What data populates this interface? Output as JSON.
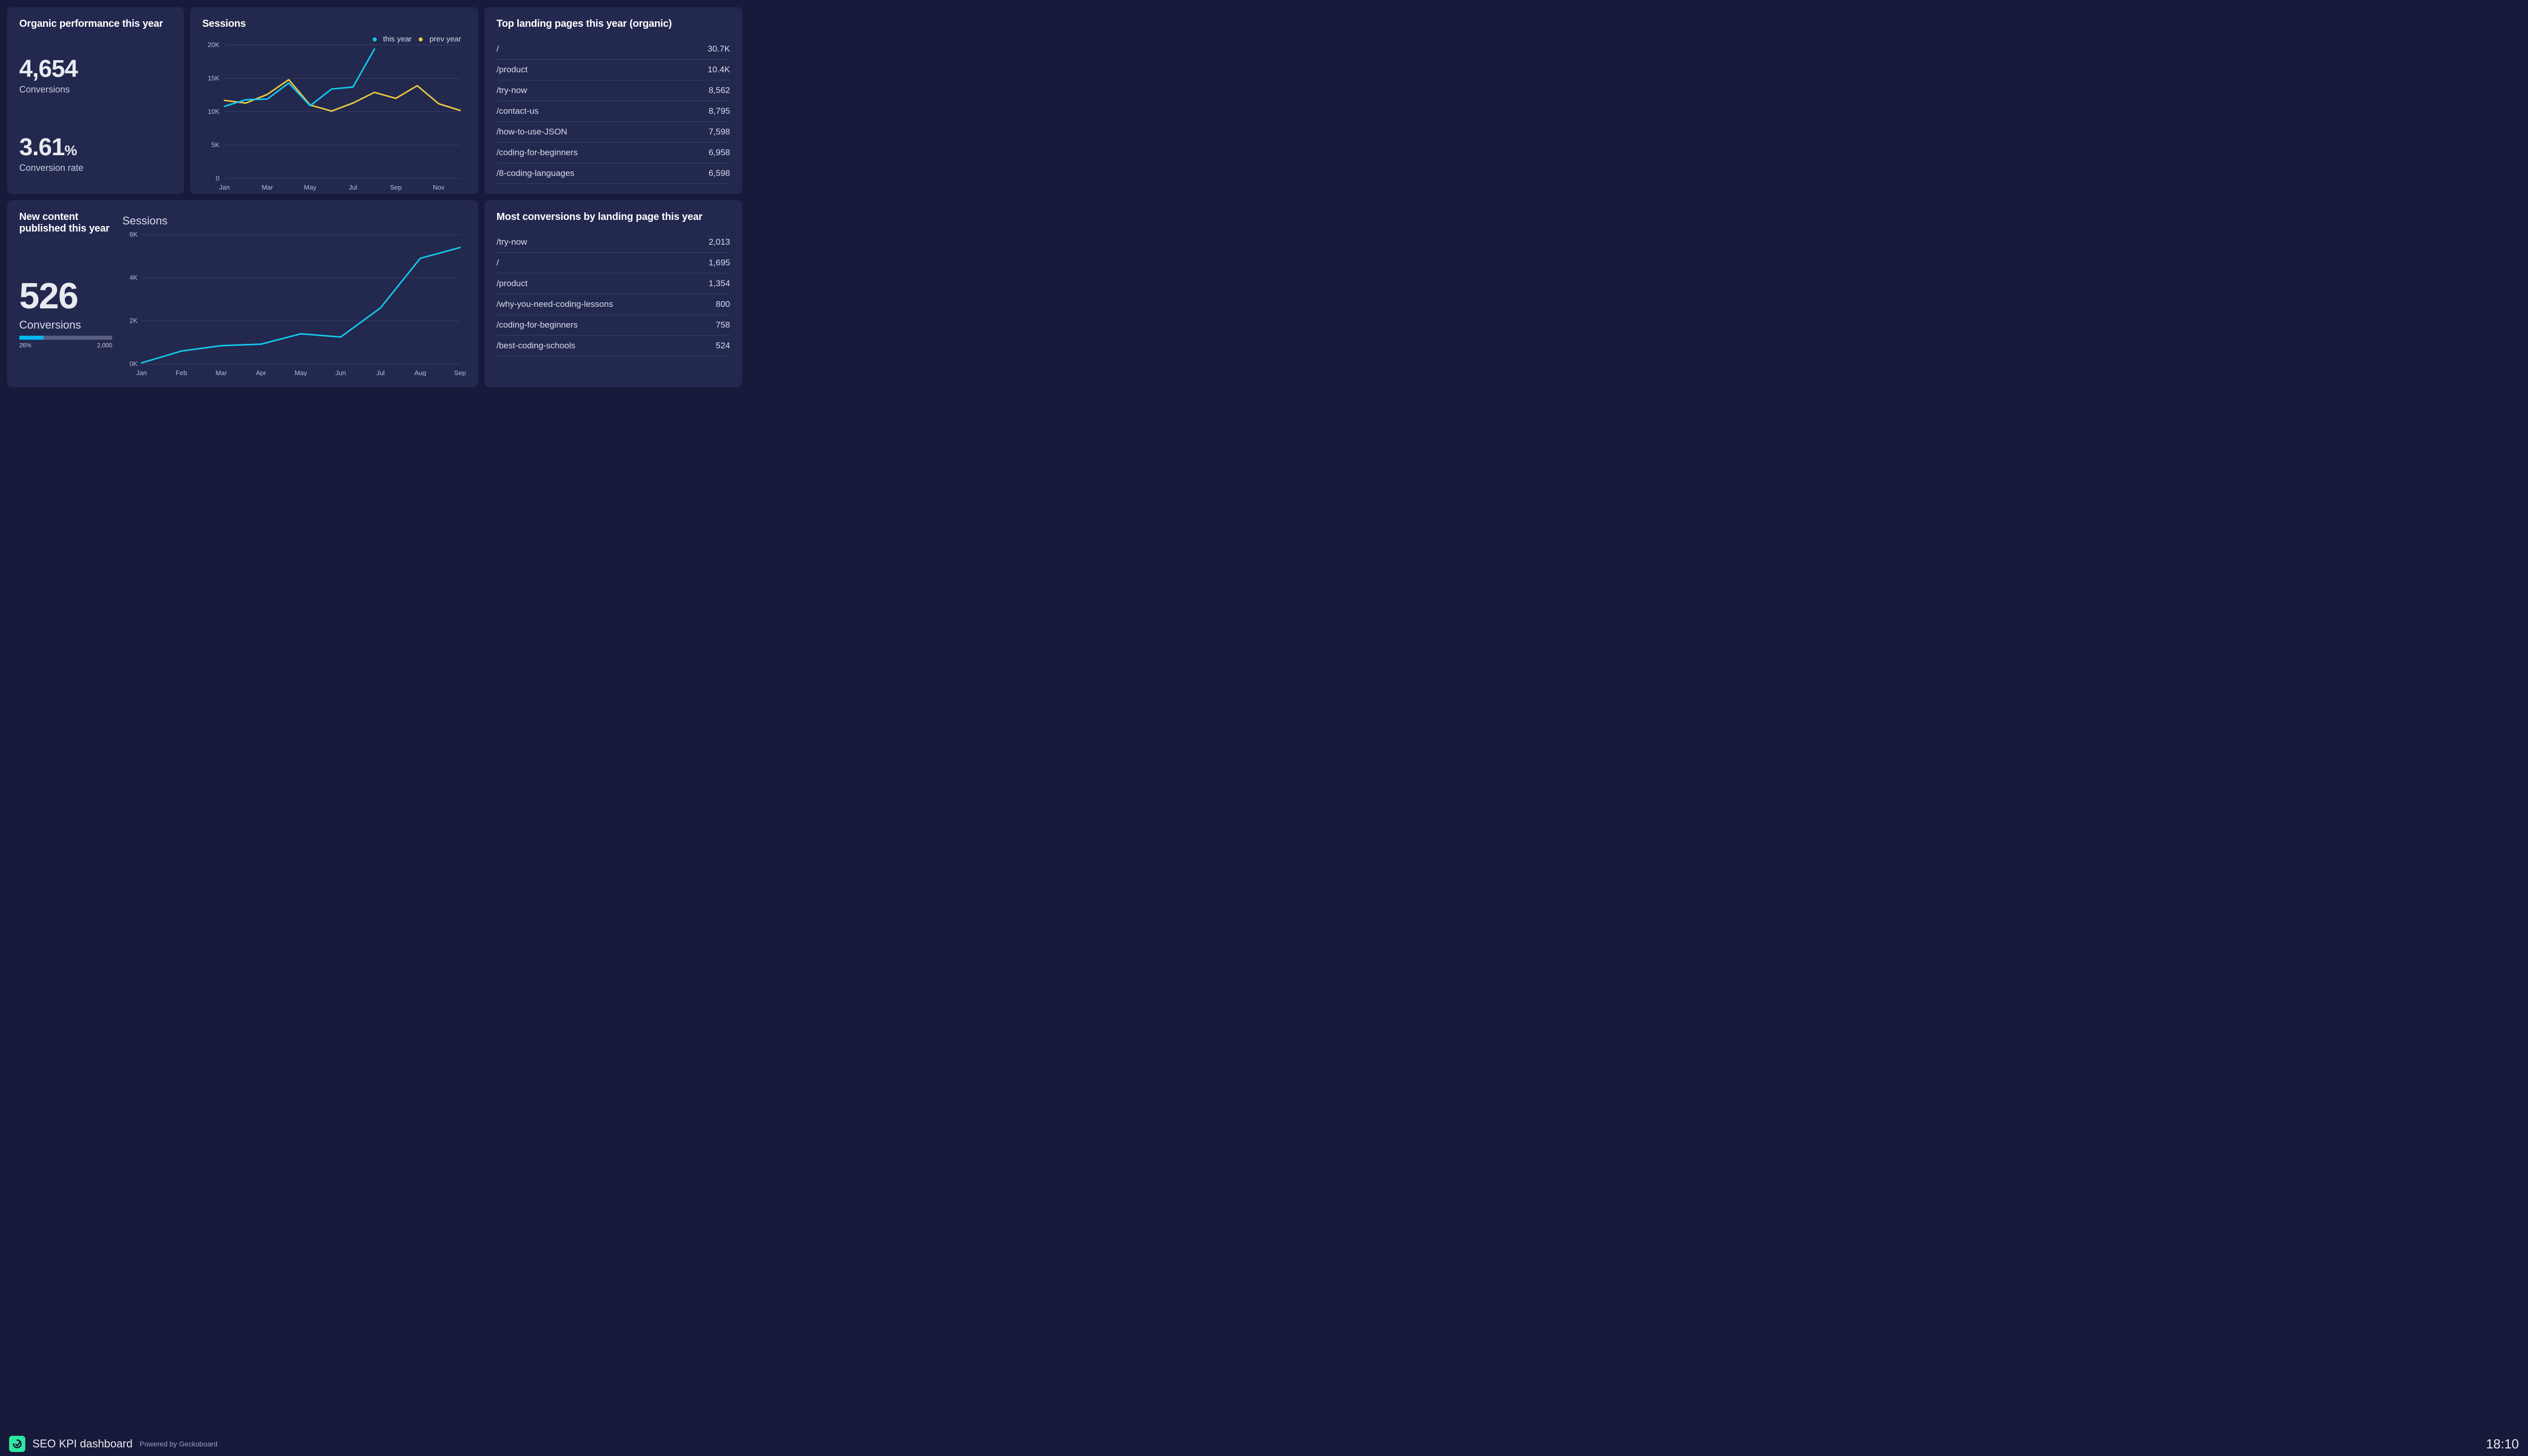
{
  "theme": {
    "page_bg": "#171a3a",
    "card_bg": "#23284f",
    "text_primary": "#e8eaf0",
    "text_secondary": "#c8cce0",
    "text_muted": "#b8bdd8",
    "divider": "#3a3f68",
    "accent_cyan": "#14c8e8",
    "accent_yellow": "#e8c940",
    "progress_bg": "#5a5f82",
    "progress_fill": "#00b8f0",
    "logo_bg": "#2ee8a0"
  },
  "organic_performance": {
    "title": "Organic performance this year",
    "conversions_value": "4,654",
    "conversions_label": "Conversions",
    "rate_value": "3.61",
    "rate_unit": "%",
    "rate_label": "Conversion rate"
  },
  "sessions_chart": {
    "title": "Sessions",
    "type": "line",
    "legend": {
      "this_year": "this year",
      "prev_year": "prev year"
    },
    "colors": {
      "this_year": "#14c8e8",
      "prev_year": "#e8c940"
    },
    "line_width": 3,
    "y_axis": {
      "min": 0,
      "max": 20000,
      "ticks": [
        0,
        5000,
        10000,
        15000,
        20000
      ],
      "tick_labels": [
        "0",
        "5K",
        "10K",
        "15K",
        "20K"
      ]
    },
    "x_axis": {
      "labels_shown": [
        "Jan",
        "Mar",
        "May",
        "Jul",
        "Sep",
        "Nov"
      ],
      "months": [
        "Jan",
        "Feb",
        "Mar",
        "Apr",
        "May",
        "Jun",
        "Jul",
        "Aug",
        "Sep",
        "Oct",
        "Nov",
        "Dec"
      ]
    },
    "series": {
      "this_year": [
        10800,
        11800,
        11900,
        14300,
        10900,
        13400,
        13700,
        19400
      ],
      "prev_year": [
        11700,
        11300,
        12600,
        14800,
        11000,
        10100,
        11300,
        12900,
        12000,
        13900,
        11200,
        10200
      ]
    },
    "grid_color": "#3a3f68",
    "background": "#23284f"
  },
  "landing_pages": {
    "title": "Top landing pages this year (organic)",
    "rows": [
      {
        "path": "/",
        "value": "30.7K"
      },
      {
        "path": "/product",
        "value": "10.4K"
      },
      {
        "path": "/try-now",
        "value": "8,562"
      },
      {
        "path": "/contact-us",
        "value": "8,795"
      },
      {
        "path": "/how-to-use-JSON",
        "value": "7,598"
      },
      {
        "path": "/coding-for-beginners",
        "value": "6,958"
      },
      {
        "path": "/8-coding-languages",
        "value": "6,598"
      }
    ]
  },
  "new_content": {
    "title": "New content published this year",
    "conversions_value": "526",
    "conversions_label": "Conversions",
    "progress": {
      "percent": 26,
      "percent_label": "26%",
      "target": "2,000"
    },
    "chart": {
      "sub_title": "Sessions",
      "type": "line",
      "color": "#14c8e8",
      "line_width": 3,
      "y_axis": {
        "min": 0,
        "max": 6000,
        "ticks": [
          0,
          2000,
          4000,
          6000
        ],
        "tick_labels": [
          "0K",
          "2K",
          "4K",
          "6K"
        ]
      },
      "x_axis": {
        "labels": [
          "Jan",
          "Feb",
          "Mar",
          "Apr",
          "May",
          "Jun",
          "Jul",
          "Aug",
          "Sep"
        ]
      },
      "values": [
        50,
        600,
        850,
        920,
        1400,
        1250,
        2600,
        4900,
        5400
      ],
      "grid_color": "#3a3f68"
    }
  },
  "conversions_pages": {
    "title": "Most conversions by landing page this year",
    "rows": [
      {
        "path": "/try-now",
        "value": "2,013"
      },
      {
        "path": "/",
        "value": "1,695"
      },
      {
        "path": "/product",
        "value": "1,354"
      },
      {
        "path": "/why-you-need-coding-lessons",
        "value": "800"
      },
      {
        "path": "/coding-for-beginners",
        "value": "758"
      },
      {
        "path": "/best-coding-schools",
        "value": "524"
      }
    ]
  },
  "footer": {
    "title": "SEO KPI dashboard",
    "powered_by": "Powered by Geckoboard",
    "time": "18:10"
  }
}
